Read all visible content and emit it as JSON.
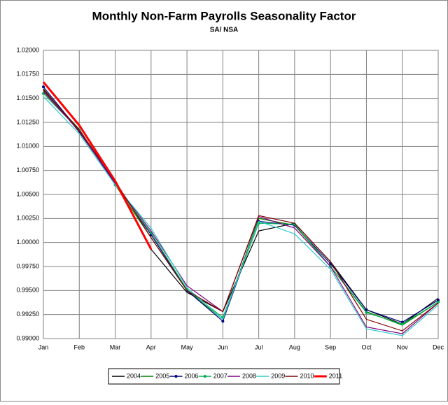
{
  "chart_data": {
    "type": "line",
    "title": "Monthly Non-Farm Payrolls Seasonality Factor",
    "subtitle": "SA/ NSA",
    "categories": [
      "Jan",
      "Feb",
      "Mar",
      "Apr",
      "May",
      "Jun",
      "Jul",
      "Aug",
      "Sep",
      "Oct",
      "Nov",
      "Dec"
    ],
    "ylim": [
      0.99,
      1.02
    ],
    "yticks": [
      {
        "value": 0.99,
        "label": "0.99000"
      },
      {
        "value": 0.9925,
        "label": "0.99250"
      },
      {
        "value": 0.995,
        "label": "0.99500"
      },
      {
        "value": 0.9975,
        "label": "0.99750"
      },
      {
        "value": 1.0,
        "label": "1.00000"
      },
      {
        "value": 1.0025,
        "label": "1.00250"
      },
      {
        "value": 1.005,
        "label": "1.00500"
      },
      {
        "value": 1.0075,
        "label": "1.00750"
      },
      {
        "value": 1.01,
        "label": "1.01000"
      },
      {
        "value": 1.0125,
        "label": "1.01250"
      },
      {
        "value": 1.015,
        "label": "1.01500"
      },
      {
        "value": 1.0175,
        "label": "1.01750"
      },
      {
        "value": 1.02,
        "label": "1.02000"
      }
    ],
    "grid": true,
    "legend": "bottom",
    "series": [
      {
        "name": "2004",
        "color": "#000000",
        "values": [
          1.016,
          1.0115,
          1.0062,
          0.9993,
          0.9948,
          0.9928,
          1.0012,
          1.002,
          0.998,
          0.993,
          0.9915,
          0.9942
        ]
      },
      {
        "name": "2005",
        "color": "#008000",
        "values": [
          1.0158,
          1.0118,
          1.006,
          1.0005,
          0.995,
          0.992,
          1.0025,
          1.0018,
          0.9975,
          0.9928,
          0.9914,
          0.9938
        ]
      },
      {
        "name": "2006",
        "color": "#000080",
        "marker": true,
        "values": [
          1.0162,
          1.0116,
          1.0062,
          1.0008,
          0.995,
          0.9918,
          1.0022,
          1.0018,
          0.9978,
          0.993,
          0.9917,
          0.994
        ]
      },
      {
        "name": "2007",
        "color": "#00b050",
        "marker": true,
        "values": [
          1.0155,
          1.0117,
          1.006,
          1.001,
          0.9951,
          0.9922,
          1.002,
          1.0019,
          0.9975,
          0.9927,
          0.9915,
          0.9938
        ]
      },
      {
        "name": "2008",
        "color": "#800080",
        "values": [
          1.0157,
          1.0116,
          1.0061,
          1.0012,
          0.9955,
          0.9928,
          1.0027,
          1.0015,
          0.9975,
          0.9912,
          0.9905,
          0.9937
        ]
      },
      {
        "name": "2009",
        "color": "#33cccc",
        "values": [
          1.0152,
          1.0113,
          1.006,
          1.0015,
          0.9953,
          0.992,
          1.0022,
          1.0009,
          0.9972,
          0.991,
          0.9903,
          0.9935
        ]
      },
      {
        "name": "2010",
        "color": "#800000",
        "values": [
          1.0159,
          1.0117,
          1.0064,
          1.0005,
          0.995,
          0.9928,
          1.0028,
          1.002,
          0.998,
          0.992,
          0.9908,
          0.9937
        ]
      },
      {
        "name": "2011",
        "color": "#ff0000",
        "width": 3,
        "values": [
          1.0167,
          1.0122,
          1.0064,
          0.9993,
          null,
          null,
          null,
          null,
          null,
          null,
          null,
          null
        ]
      }
    ]
  }
}
